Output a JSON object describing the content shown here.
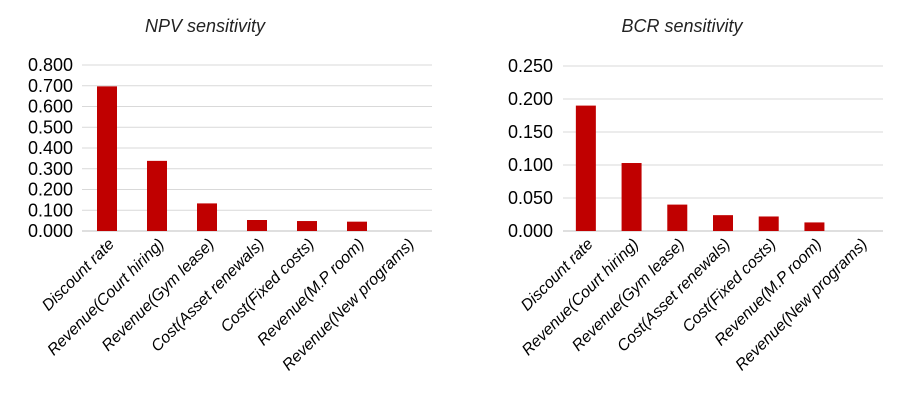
{
  "chart_data": [
    {
      "type": "bar",
      "title": "NPV sensitivity",
      "categories": [
        "Discount rate",
        "Revenue(Court hiring)",
        "Revenue(Gym lease)",
        "Cost(Asset renewals)",
        "Cost(Fixed costs)",
        "Revenue(M.P room)",
        "Revenue(New programs)"
      ],
      "values": [
        0.697,
        0.338,
        0.133,
        0.053,
        0.048,
        0.045,
        0.0
      ],
      "ylim": [
        0,
        0.8
      ],
      "yticks": [
        "0.000",
        "0.100",
        "0.200",
        "0.300",
        "0.400",
        "0.500",
        "0.600",
        "0.700",
        "0.800"
      ],
      "ytick_values": [
        0,
        0.1,
        0.2,
        0.3,
        0.4,
        0.5,
        0.6,
        0.7,
        0.8
      ],
      "bar_color": "#c00000",
      "grid": true
    },
    {
      "type": "bar",
      "title": "BCR sensitivity",
      "categories": [
        "Discount rate",
        "Revenue(Court hiring)",
        "Revenue(Gym lease)",
        "Cost(Asset renewals)",
        "Cost(Fixed costs)",
        "Revenue(M.P room)",
        "Revenue(New programs)"
      ],
      "values": [
        0.19,
        0.103,
        0.04,
        0.024,
        0.022,
        0.013,
        0.0
      ],
      "ylim": [
        0,
        0.25
      ],
      "yticks": [
        "0.000",
        "0.050",
        "0.100",
        "0.150",
        "0.200",
        "0.250"
      ],
      "ytick_values": [
        0,
        0.05,
        0.1,
        0.15,
        0.2,
        0.25
      ],
      "bar_color": "#c00000",
      "grid": true
    }
  ]
}
